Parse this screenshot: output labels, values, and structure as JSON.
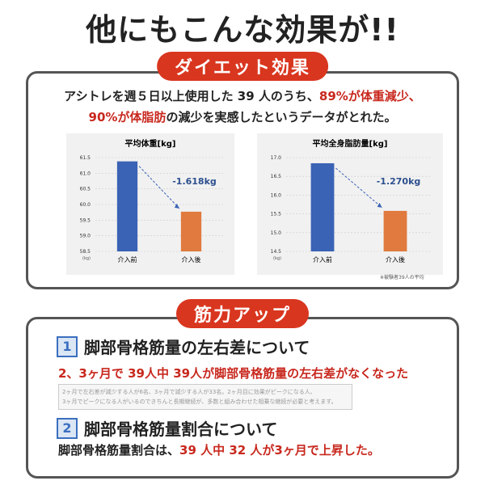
{
  "title": "他にもこんな効果が!!",
  "diet": {
    "heading": "ダイエット効果",
    "lines": [
      [
        {
          "text": "アシトレを週５日以上使用した 39 人のうち、",
          "emphasis": false
        },
        {
          "text": "89%が体重減少、",
          "emphasis": true
        }
      ],
      [
        {
          "text": "90%が体脂肪",
          "emphasis": true
        },
        {
          "text": "の減少を実感したというデータがとれた。",
          "emphasis": false
        }
      ]
    ],
    "charts": [
      {
        "type": "bar",
        "title": "平均体重[kg]",
        "unit": "(kg)",
        "categories": [
          "介入前",
          "介入後"
        ],
        "values": [
          61.38,
          59.77
        ],
        "colors": [
          "#3a62b5",
          "#e07a3e"
        ],
        "ylim": [
          58.5,
          61.5
        ],
        "yticks": [
          58.5,
          {
            "value": 59,
            "label": "59.0"
          },
          59.5,
          {
            "value": 60,
            "label": "60.0"
          },
          60.5,
          {
            "value": 61,
            "label": "61.0"
          },
          61.5
        ],
        "grid": true,
        "annotation": "-1.618kg"
      },
      {
        "type": "bar",
        "title": "平均全身脂肪量[kg]",
        "unit": "(kg)",
        "categories": [
          "介入前",
          "介入後"
        ],
        "values": [
          16.85,
          15.58
        ],
        "colors": [
          "#3a62b5",
          "#e07a3e"
        ],
        "ylim": [
          14.5,
          17
        ],
        "yticks": [
          14.5,
          {
            "value": 15,
            "label": "15.0"
          },
          15.5,
          {
            "value": 16,
            "label": "16.0"
          },
          16.5,
          {
            "value": 17,
            "label": "17.0"
          }
        ],
        "grid": true,
        "annotation": "-1.270kg"
      }
    ],
    "note": "※被験者39人の平均"
  },
  "muscle": {
    "heading": "筋力アップ",
    "items": [
      {
        "number": "1",
        "title": "脚部骨格筋量の左右差について",
        "lines": [
          [
            {
              "text": "2、3ヶ月で 39人中 39人が脚部骨格筋量の左右差がなくなった",
              "emphasis": true
            }
          ]
        ],
        "details": [
          "2ヶ月で左右差が減少する人が6名、3ヶ月で減少する人が33名。2ヶ月目に効果がピークになる人、",
          "3ヶ月でピークになる人がいるのできちんと長期継続が、多数と組み合わせた相乗な継続が必要と考えます。"
        ]
      },
      {
        "number": "2",
        "title": "脚部骨格筋量割合について",
        "lines": [
          [
            {
              "text": "脚部骨格筋量割合は、",
              "emphasis": false
            },
            {
              "text": "39 人中 32 人が3ヶ月で上昇した。",
              "emphasis": true
            }
          ]
        ]
      }
    ]
  }
}
